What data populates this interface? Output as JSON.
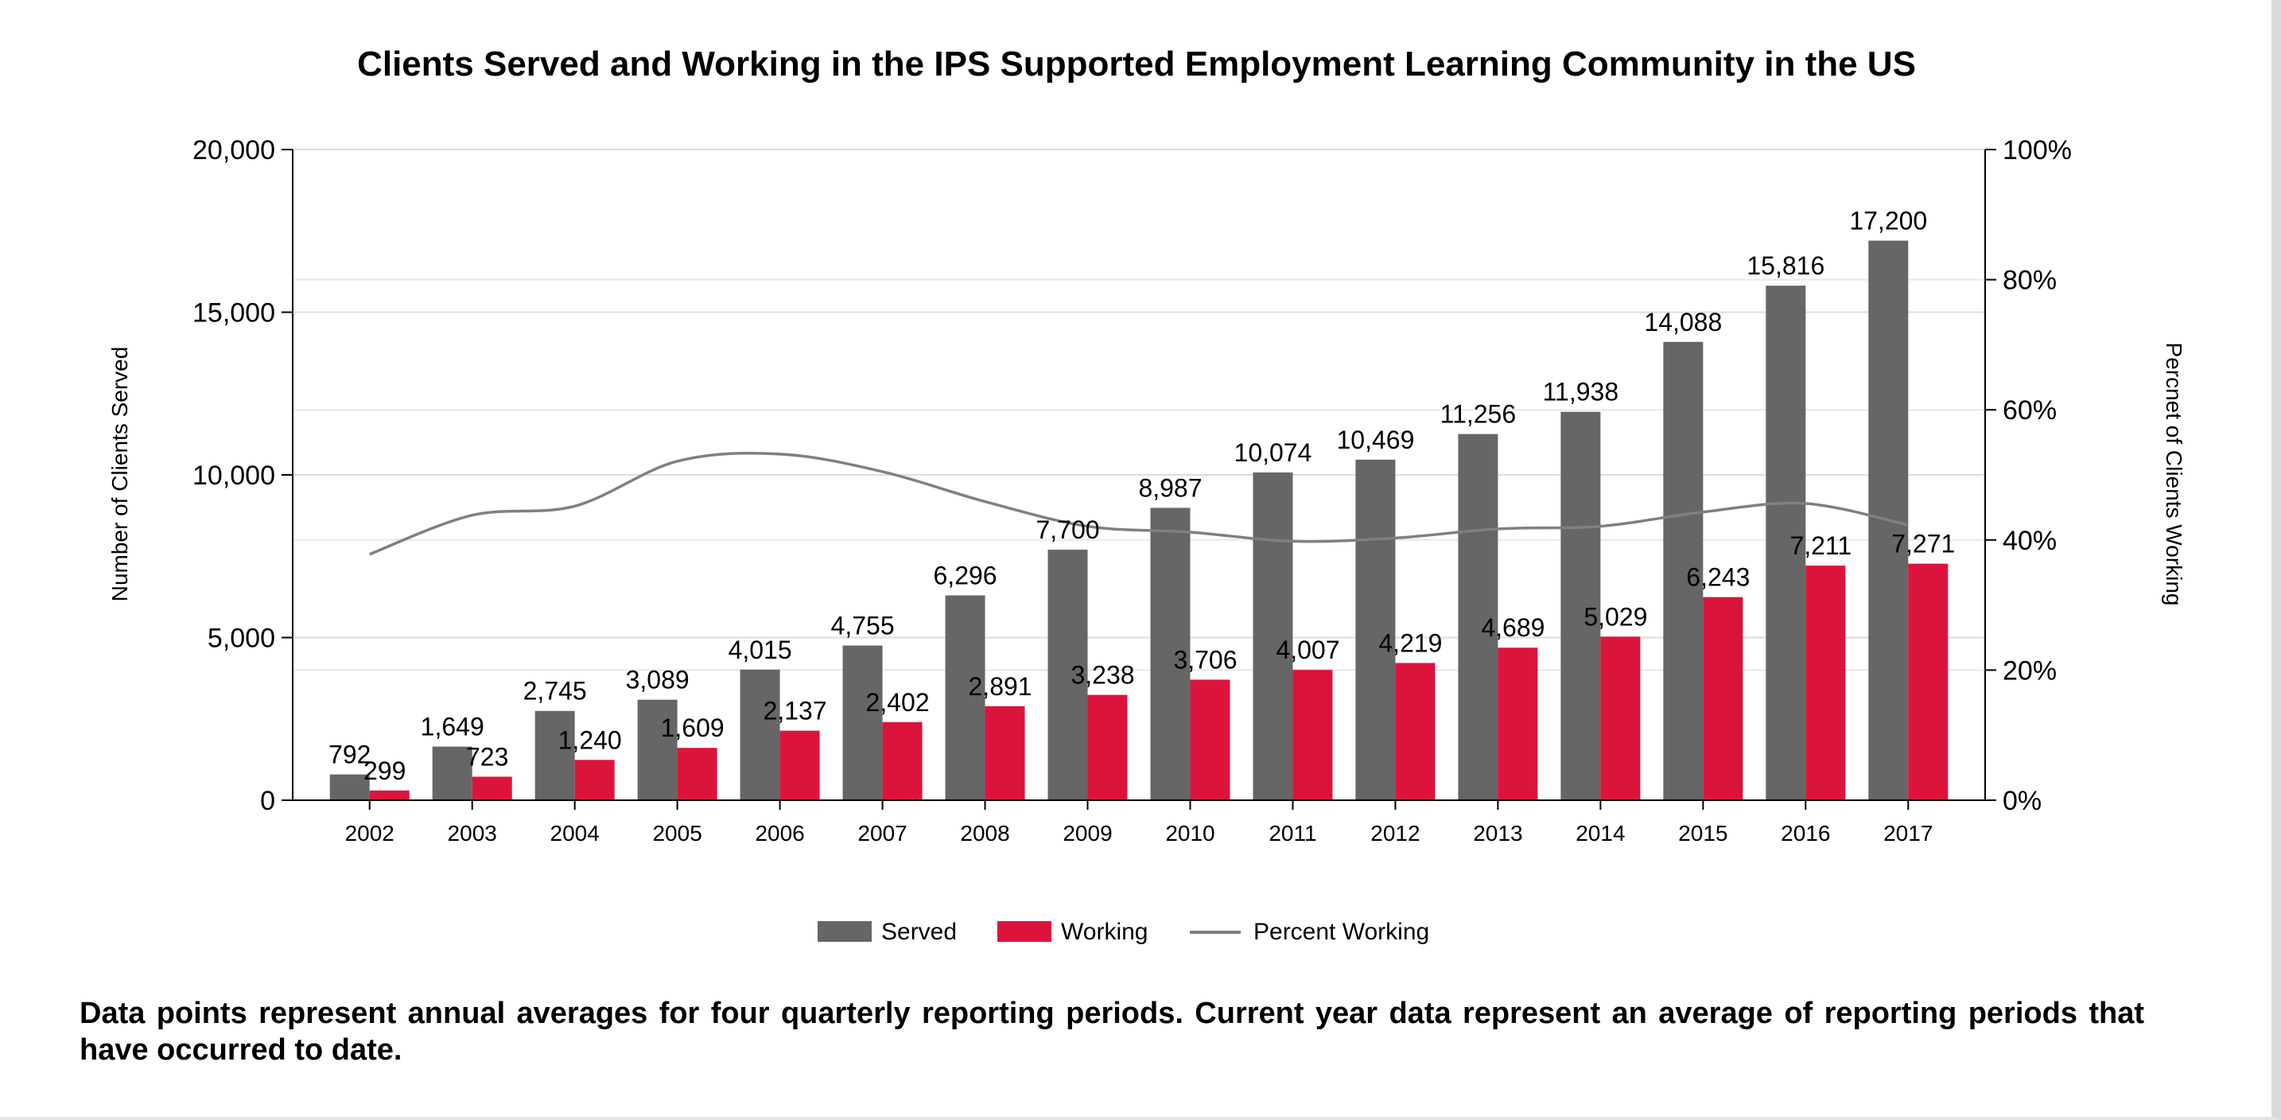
{
  "chart_data": {
    "type": "bar",
    "title": "Clients Served and Working in the IPS Supported Employment Learning Community in the US",
    "ylabel": "Number of Clients Served",
    "y2label": "Percnet of Clients Working",
    "categories": [
      "2002",
      "2003",
      "2004",
      "2005",
      "2006",
      "2007",
      "2008",
      "2009",
      "2010",
      "2011",
      "2012",
      "2013",
      "2014",
      "2015",
      "2016",
      "2017"
    ],
    "ylim": [
      0,
      20000
    ],
    "y2lim": [
      0,
      100
    ],
    "yticks": [
      "0",
      "5,000",
      "10,000",
      "15,000",
      "20,000"
    ],
    "yticks_values": [
      0,
      5000,
      10000,
      15000,
      20000
    ],
    "y2ticks": [
      "0%",
      "20%",
      "40%",
      "60%",
      "80%",
      "100%"
    ],
    "y2ticks_values": [
      0,
      20,
      40,
      60,
      80,
      100
    ],
    "series": [
      {
        "name": "Served",
        "kind": "bar",
        "color": "#666666",
        "values": [
          792,
          1649,
          2745,
          3089,
          4015,
          4755,
          6296,
          7700,
          8987,
          10074,
          10469,
          11256,
          11938,
          14088,
          15816,
          17200
        ],
        "labels": [
          "792",
          "1,649",
          "2,745",
          "3,089",
          "4,015",
          "4,755",
          "6,296",
          "7,700",
          "8,987",
          "10,074",
          "10,469",
          "11,256",
          "11,938",
          "14,088",
          "15,816",
          "17,200"
        ]
      },
      {
        "name": "Working",
        "kind": "bar",
        "color": "#dc143c",
        "values": [
          299,
          723,
          1240,
          1609,
          2137,
          2402,
          2891,
          3238,
          3706,
          4007,
          4219,
          4689,
          5029,
          6243,
          7211,
          7271
        ],
        "labels": [
          "299",
          "723",
          "1,240",
          "1,609",
          "2,137",
          "2,402",
          "2,891",
          "3,238",
          "3,706",
          "4,007",
          "4,219",
          "4,689",
          "5,029",
          "6,243",
          "7,211",
          "7,271"
        ]
      },
      {
        "name": "Percent Working",
        "kind": "line",
        "axis": "right",
        "color": "#808080",
        "values": [
          37.8,
          43.8,
          45.2,
          52.1,
          53.2,
          50.5,
          45.9,
          42.1,
          41.2,
          39.8,
          40.3,
          41.7,
          42.1,
          44.3,
          45.6,
          42.3
        ]
      }
    ],
    "grid": true,
    "legend_position": "bottom"
  },
  "footnote": "Data points represent annual averages for four quarterly reporting periods. Current year data represent an average of reporting periods that have occurred to date."
}
